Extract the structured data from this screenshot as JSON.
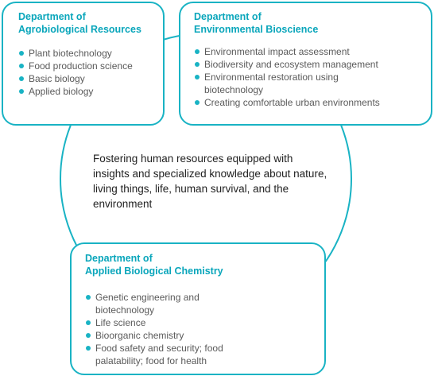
{
  "departments": [
    {
      "title_lines": [
        "Department of",
        "Agrobiological Resources"
      ],
      "items": [
        "Plant biotechnology",
        "Food production science",
        "Basic biology",
        "Applied biology"
      ]
    },
    {
      "title_lines": [
        "Department of",
        "Environmental Bioscience"
      ],
      "items": [
        "Environmental impact assessment",
        "Biodiversity and ecosystem management",
        "Environmental restoration using biotechnology",
        "Creating comfortable urban environments"
      ]
    },
    {
      "title_lines": [
        "Department of",
        "Applied Biological Chemistry"
      ],
      "items": [
        "Genetic engineering and biotechnology",
        "Life science",
        "Bioorganic chemistry",
        "Food safety and security; food palatability; food for health"
      ]
    }
  ],
  "center_text": "Fostering human resources equipped with insights and specialized knowledge about nature, living things, life, human survival, and the environment",
  "colors": {
    "accent": "#19b3c4",
    "title": "#0aa6bb",
    "body_text": "#5a5a5a",
    "center_text": "#222222"
  }
}
